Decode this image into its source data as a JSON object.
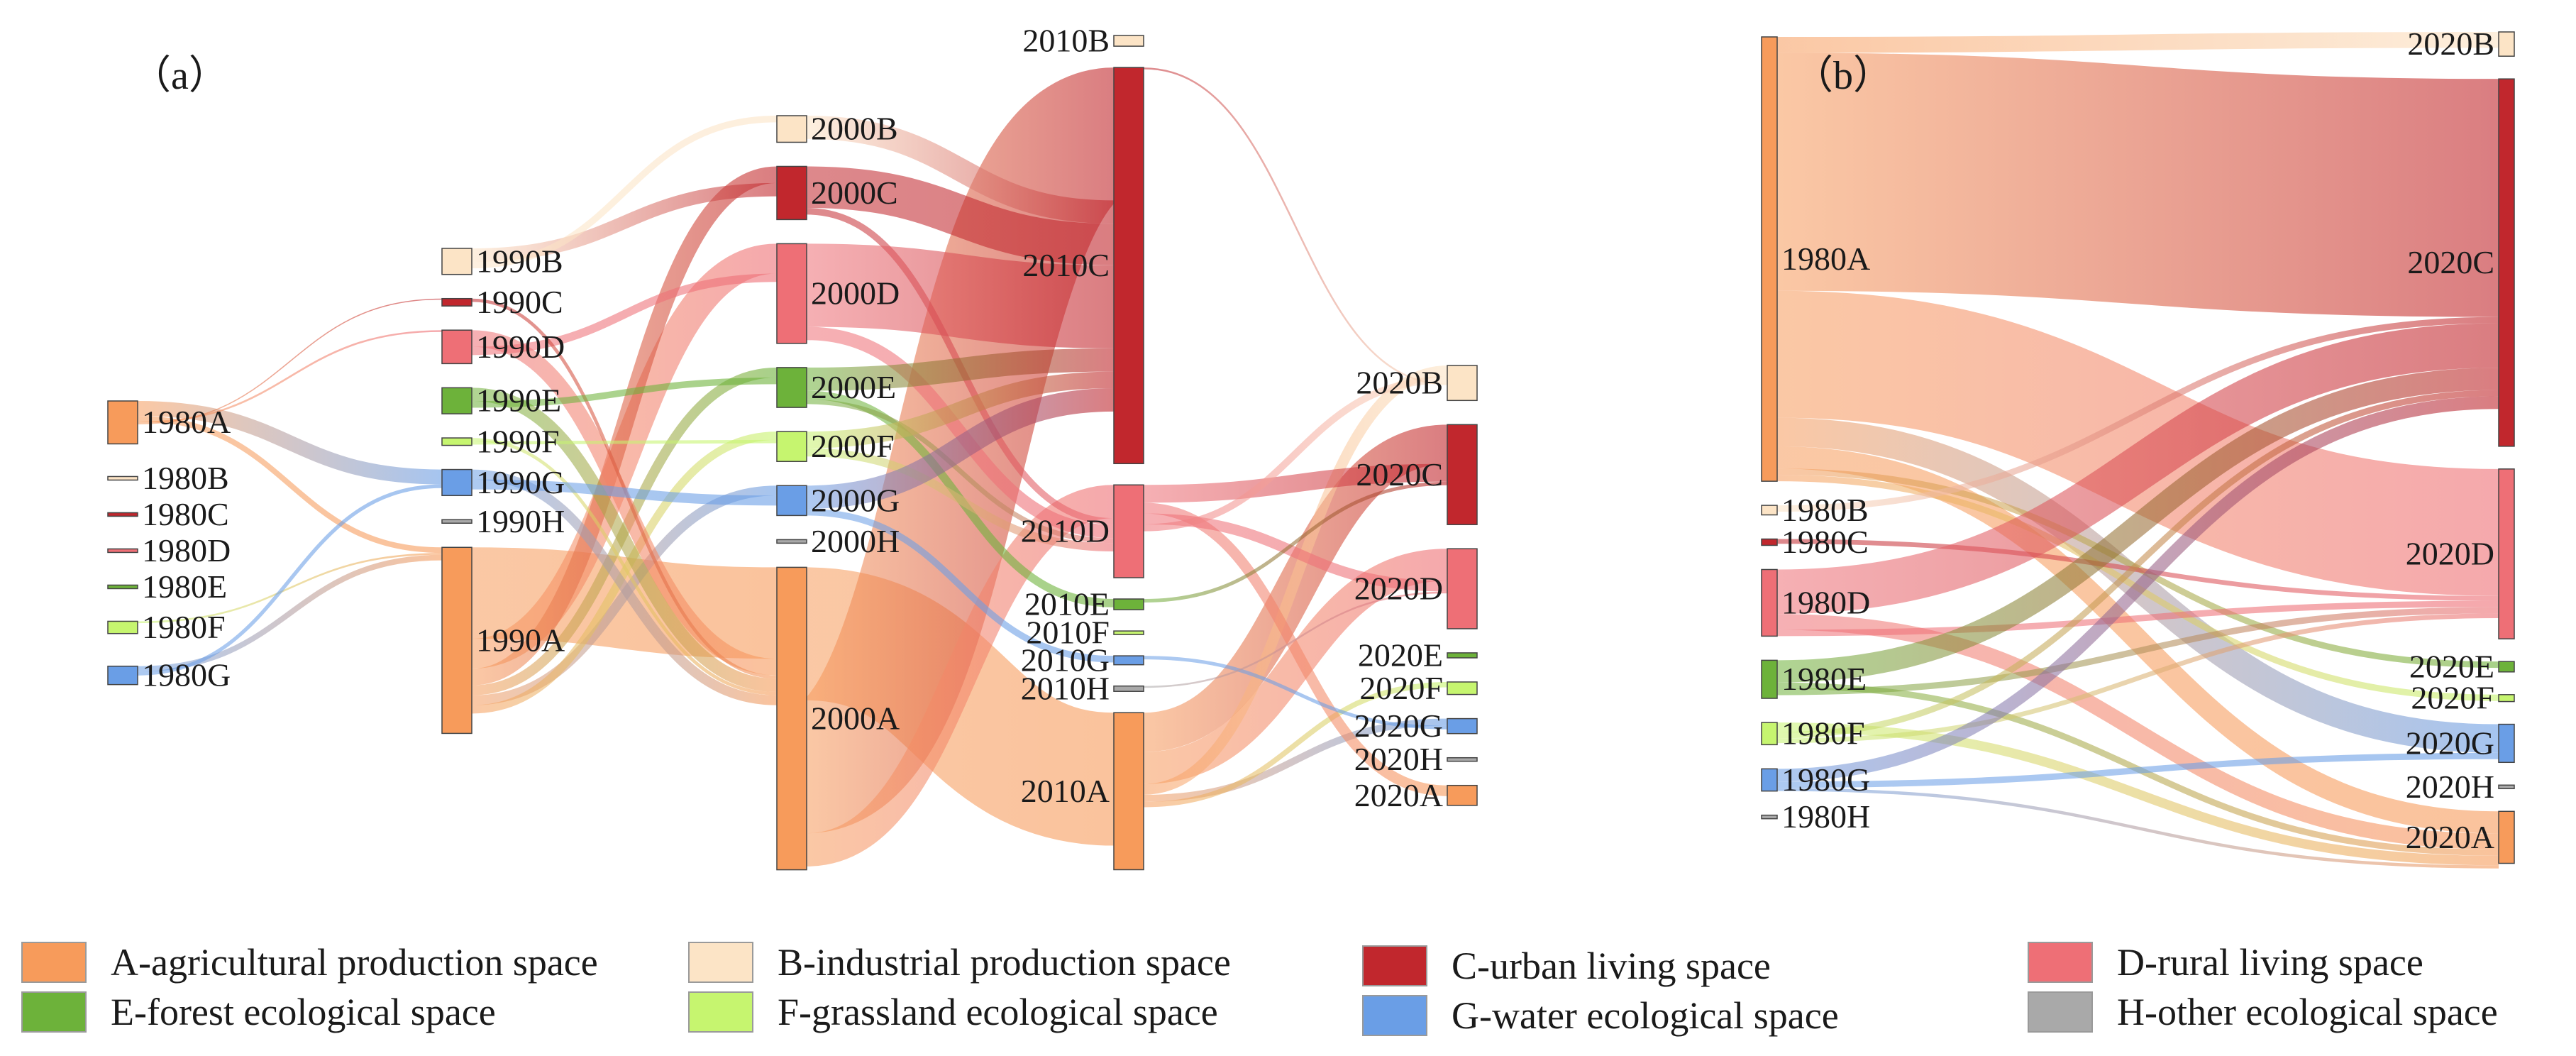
{
  "figure": {
    "panel_a_label": "（a）",
    "panel_b_label": "（b）"
  },
  "categories": {
    "A": {
      "color": "#F79B5B"
    },
    "B": {
      "color": "#FCE4C6"
    },
    "C": {
      "color": "#C1272D"
    },
    "D": {
      "color": "#EE6F76"
    },
    "E": {
      "color": "#6DB23A"
    },
    "F": {
      "color": "#C6F56F"
    },
    "G": {
      "color": "#6A9EE6"
    },
    "H": {
      "color": "#A9A9A9"
    }
  },
  "legend": [
    {
      "key": "A",
      "label": "A-agricultural production space"
    },
    {
      "key": "B",
      "label": "B-industrial production space"
    },
    {
      "key": "C",
      "label": "C-urban living space"
    },
    {
      "key": "D",
      "label": "D-rural living space"
    },
    {
      "key": "E",
      "label": "E-forest ecological space"
    },
    {
      "key": "F",
      "label": "F-grassland ecological space"
    },
    {
      "key": "G",
      "label": "G-water ecological space"
    },
    {
      "key": "H",
      "label": "H-other ecological space"
    }
  ],
  "panel_a": {
    "years": [
      "1980",
      "1990",
      "2000",
      "2010",
      "2020"
    ],
    "nodes": [
      {
        "year": "1980",
        "cat": "A",
        "label": "1980A",
        "value": 14
      },
      {
        "year": "1980",
        "cat": "B",
        "label": "1980B",
        "value": 0.6
      },
      {
        "year": "1980",
        "cat": "C",
        "label": "1980C",
        "value": 0.6
      },
      {
        "year": "1980",
        "cat": "D",
        "label": "1980D",
        "value": 0.6
      },
      {
        "year": "1980",
        "cat": "E",
        "label": "1980E",
        "value": 0.6
      },
      {
        "year": "1980",
        "cat": "F",
        "label": "1980F",
        "value": 4
      },
      {
        "year": "1980",
        "cat": "G",
        "label": "1980G",
        "value": 6
      },
      {
        "year": "1990",
        "cat": "B",
        "label": "1990B",
        "value": 14
      },
      {
        "year": "1990",
        "cat": "C",
        "label": "1990C",
        "value": 4
      },
      {
        "year": "1990",
        "cat": "D",
        "label": "1990D",
        "value": 18
      },
      {
        "year": "1990",
        "cat": "E",
        "label": "1990E",
        "value": 14
      },
      {
        "year": "1990",
        "cat": "F",
        "label": "1990F",
        "value": 4
      },
      {
        "year": "1990",
        "cat": "G",
        "label": "1990G",
        "value": 14
      },
      {
        "year": "1990",
        "cat": "H",
        "label": "1990H",
        "value": 0.6
      },
      {
        "year": "1990",
        "cat": "A",
        "label": "1990A",
        "value": 100
      },
      {
        "year": "2000",
        "cat": "B",
        "label": "2000B",
        "value": 16
      },
      {
        "year": "2000",
        "cat": "C",
        "label": "2000C",
        "value": 32
      },
      {
        "year": "2000",
        "cat": "D",
        "label": "2000D",
        "value": 60
      },
      {
        "year": "2000",
        "cat": "E",
        "label": "2000E",
        "value": 24
      },
      {
        "year": "2000",
        "cat": "F",
        "label": "2000F",
        "value": 18
      },
      {
        "year": "2000",
        "cat": "G",
        "label": "2000G",
        "value": 18
      },
      {
        "year": "2000",
        "cat": "H",
        "label": "2000H",
        "value": 0.6
      },
      {
        "year": "2000",
        "cat": "A",
        "label": "2000A",
        "value": 182
      },
      {
        "year": "2010",
        "cat": "B",
        "label": "2010B",
        "value": 6
      },
      {
        "year": "2010",
        "cat": "C",
        "label": "2010C",
        "value": 222
      },
      {
        "year": "2010",
        "cat": "D",
        "label": "2010D",
        "value": 52
      },
      {
        "year": "2010",
        "cat": "E",
        "label": "2010E",
        "value": 6
      },
      {
        "year": "2010",
        "cat": "F",
        "label": "2010F",
        "value": 0.6
      },
      {
        "year": "2010",
        "cat": "G",
        "label": "2010G",
        "value": 5
      },
      {
        "year": "2010",
        "cat": "H",
        "label": "2010H",
        "value": 3
      },
      {
        "year": "2010",
        "cat": "A",
        "label": "2010A",
        "value": 88
      },
      {
        "year": "2020",
        "cat": "B",
        "label": "2020B",
        "value": 14
      },
      {
        "year": "2020",
        "cat": "C",
        "label": "2020C",
        "value": 40
      },
      {
        "year": "2020",
        "cat": "D",
        "label": "2020D",
        "value": 32
      },
      {
        "year": "2020",
        "cat": "E",
        "label": "2020E",
        "value": 2
      },
      {
        "year": "2020",
        "cat": "F",
        "label": "2020F",
        "value": 5
      },
      {
        "year": "2020",
        "cat": "G",
        "label": "2020G",
        "value": 6
      },
      {
        "year": "2020",
        "cat": "H",
        "label": "2020H",
        "value": 0.6
      },
      {
        "year": "2020",
        "cat": "A",
        "label": "2020A",
        "value": 8
      }
    ],
    "links": [
      [
        "1980A",
        "1990G",
        8
      ],
      [
        "1980A",
        "1990A",
        3
      ],
      [
        "1980A",
        "1990D",
        1
      ],
      [
        "1980A",
        "1990C",
        0.6
      ],
      [
        "1980F",
        "1990A",
        1
      ],
      [
        "1980G",
        "1990A",
        3
      ],
      [
        "1980G",
        "1990G",
        2
      ],
      [
        "1990A",
        "2000A",
        55
      ],
      [
        "1990A",
        "2000D",
        18
      ],
      [
        "1990A",
        "2000C",
        10
      ],
      [
        "1990A",
        "2000E",
        6
      ],
      [
        "1990A",
        "2000G",
        6
      ],
      [
        "1990A",
        "2000F",
        5
      ],
      [
        "1990B",
        "2000C",
        8
      ],
      [
        "1990B",
        "2000B",
        4
      ],
      [
        "1990D",
        "2000A",
        10
      ],
      [
        "1990D",
        "2000D",
        5
      ],
      [
        "1990C",
        "2000A",
        2
      ],
      [
        "1990E",
        "2000A",
        8
      ],
      [
        "1990E",
        "2000E",
        4
      ],
      [
        "1990F",
        "2000A",
        2
      ],
      [
        "1990F",
        "2000F",
        2
      ],
      [
        "1990G",
        "2000A",
        6
      ],
      [
        "1990G",
        "2000G",
        6
      ],
      [
        "2000A",
        "2010A",
        80
      ],
      [
        "2000A",
        "2010C",
        80
      ],
      [
        "2000A",
        "2010D",
        20
      ],
      [
        "2000B",
        "2010C",
        14
      ],
      [
        "2000C",
        "2010C",
        25
      ],
      [
        "2000C",
        "2010D",
        4
      ],
      [
        "2000D",
        "2010C",
        50
      ],
      [
        "2000D",
        "2010D",
        8
      ],
      [
        "2000E",
        "2010C",
        14
      ],
      [
        "2000E",
        "2010E",
        5
      ],
      [
        "2000E",
        "2010D",
        3
      ],
      [
        "2000F",
        "2010C",
        10
      ],
      [
        "2000F",
        "2010D",
        5
      ],
      [
        "2000G",
        "2010C",
        14
      ],
      [
        "2000G",
        "2010G",
        4
      ],
      [
        "2010A",
        "2020C",
        22
      ],
      [
        "2010A",
        "2020D",
        18
      ],
      [
        "2010A",
        "2020B",
        6
      ],
      [
        "2010A",
        "2020G",
        4
      ],
      [
        "2010A",
        "2020F",
        3
      ],
      [
        "2010D",
        "2020C",
        10
      ],
      [
        "2010D",
        "2020A",
        6
      ],
      [
        "2010D",
        "2020D",
        6
      ],
      [
        "2010D",
        "2020B",
        4
      ],
      [
        "2010C",
        "2020B",
        1
      ],
      [
        "2010E",
        "2020C",
        2
      ],
      [
        "2010G",
        "2020G",
        2
      ],
      [
        "2010H",
        "2020D",
        1
      ]
    ]
  },
  "panel_b": {
    "nodes": [
      {
        "side": "left",
        "cat": "A",
        "label": "1980A",
        "value": 280
      },
      {
        "side": "left",
        "cat": "B",
        "label": "1980B",
        "value": 6
      },
      {
        "side": "left",
        "cat": "C",
        "label": "1980C",
        "value": 4
      },
      {
        "side": "left",
        "cat": "D",
        "label": "1980D",
        "value": 42
      },
      {
        "side": "left",
        "cat": "E",
        "label": "1980E",
        "value": 24
      },
      {
        "side": "left",
        "cat": "F",
        "label": "1980F",
        "value": 14
      },
      {
        "side": "left",
        "cat": "G",
        "label": "1980G",
        "value": 14
      },
      {
        "side": "left",
        "cat": "H",
        "label": "1980H",
        "value": 0.6
      },
      {
        "side": "right",
        "cat": "B",
        "label": "2020B",
        "value": 14
      },
      {
        "side": "right",
        "cat": "C",
        "label": "2020C",
        "value": 212
      },
      {
        "side": "right",
        "cat": "D",
        "label": "2020D",
        "value": 98
      },
      {
        "side": "right",
        "cat": "E",
        "label": "2020E",
        "value": 6
      },
      {
        "side": "right",
        "cat": "F",
        "label": "2020F",
        "value": 4
      },
      {
        "side": "right",
        "cat": "G",
        "label": "2020G",
        "value": 22
      },
      {
        "side": "right",
        "cat": "H",
        "label": "2020H",
        "value": 0.6
      },
      {
        "side": "right",
        "cat": "A",
        "label": "2020A",
        "value": 30
      }
    ],
    "links": [
      [
        "1980A",
        "2020B",
        10
      ],
      [
        "1980A",
        "2020C",
        150
      ],
      [
        "1980A",
        "2020D",
        80
      ],
      [
        "1980A",
        "2020G",
        18
      ],
      [
        "1980A",
        "2020A",
        14
      ],
      [
        "1980A",
        "2020E",
        4
      ],
      [
        "1980A",
        "2020F",
        4
      ],
      [
        "1980B",
        "2020C",
        4
      ],
      [
        "1980C",
        "2020D",
        3
      ],
      [
        "1980D",
        "2020C",
        28
      ],
      [
        "1980D",
        "2020A",
        10
      ],
      [
        "1980D",
        "2020D",
        4
      ],
      [
        "1980E",
        "2020C",
        14
      ],
      [
        "1980E",
        "2020A",
        4
      ],
      [
        "1980E",
        "2020D",
        4
      ],
      [
        "1980F",
        "2020A",
        6
      ],
      [
        "1980F",
        "2020C",
        4
      ],
      [
        "1980F",
        "2020D",
        3
      ],
      [
        "1980G",
        "2020C",
        8
      ],
      [
        "1980G",
        "2020G",
        4
      ],
      [
        "1980G",
        "2020A",
        2
      ]
    ]
  }
}
